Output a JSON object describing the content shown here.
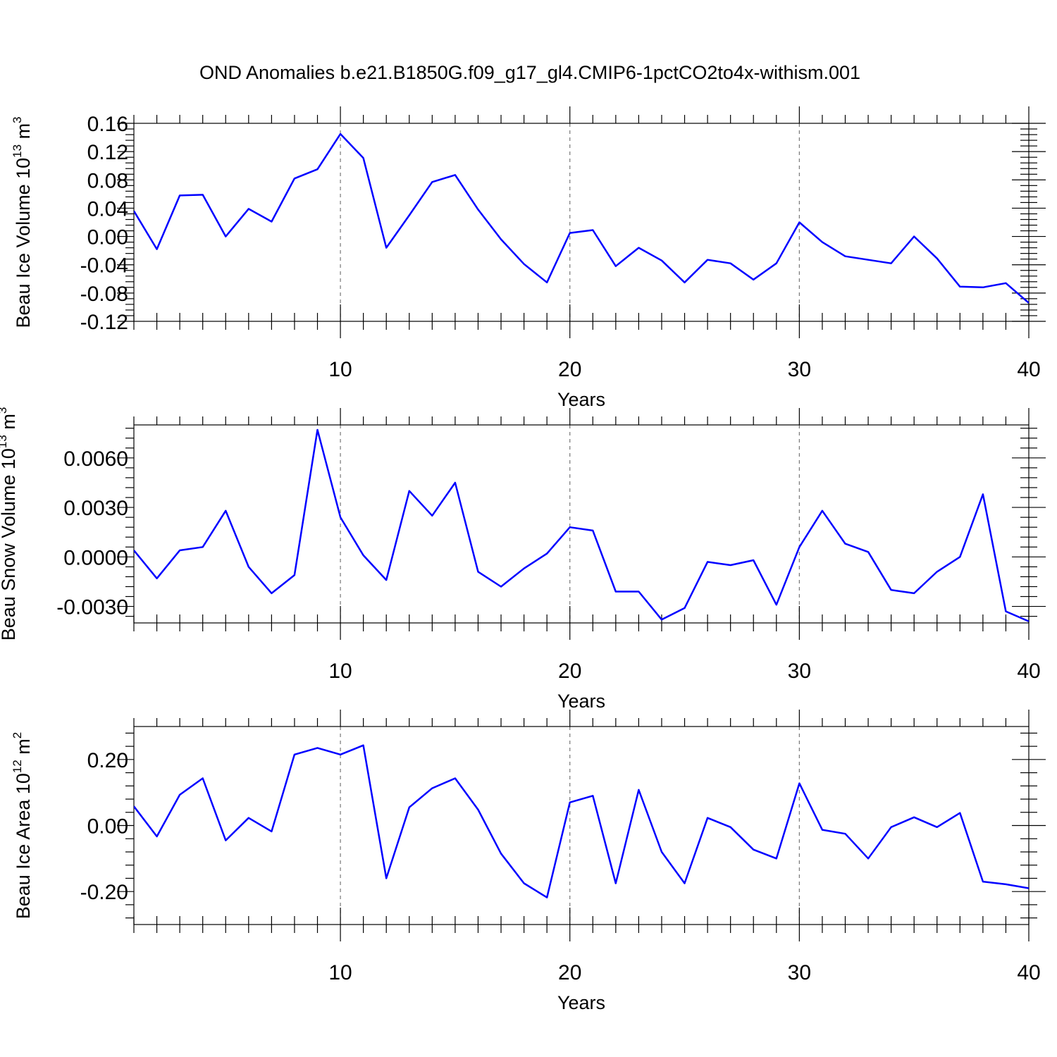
{
  "title": "OND Anomalies b.e21.B1850G.f09_g17_gl4.CMIP6-1pctCO2to4x-withism.001",
  "colors": {
    "series": "#0000ff",
    "grid": "#777777",
    "axis": "#000000"
  },
  "chart_data": [
    {
      "type": "line",
      "ylabel": {
        "main": "Beau Ice Volume 10",
        "sup": "13",
        "unit": " m",
        "unit_sup": "3"
      },
      "xlabel": "Years",
      "xlim": [
        1,
        40
      ],
      "ylim": [
        -0.12,
        0.16
      ],
      "xticks": [
        10,
        20,
        30,
        40
      ],
      "yticks": [
        -0.12,
        -0.08,
        -0.04,
        0.0,
        0.04,
        0.08,
        0.12,
        0.16
      ],
      "ytick_labels": [
        "-0.12",
        "-0.08",
        "-0.04",
        "0.00",
        "0.04",
        "0.08",
        "0.12",
        "0.16"
      ],
      "grid": "vertical dashed at major x ticks",
      "x": [
        1,
        2,
        3,
        4,
        5,
        6,
        7,
        8,
        9,
        10,
        11,
        12,
        13,
        14,
        15,
        16,
        17,
        18,
        19,
        20,
        21,
        22,
        23,
        24,
        25,
        26,
        27,
        28,
        29,
        30,
        31,
        32,
        33,
        34,
        35,
        36,
        37,
        38,
        39,
        40
      ],
      "values": [
        0.036,
        -0.018,
        0.058,
        0.059,
        0.0,
        0.039,
        0.021,
        0.082,
        0.095,
        0.145,
        0.111,
        -0.016,
        0.03,
        0.077,
        0.087,
        0.038,
        -0.004,
        -0.039,
        -0.065,
        0.005,
        0.009,
        -0.042,
        -0.016,
        -0.034,
        -0.065,
        -0.033,
        -0.038,
        -0.061,
        -0.038,
        0.02,
        -0.008,
        -0.028,
        -0.033,
        -0.038,
        0.0,
        -0.031,
        -0.071,
        -0.072,
        -0.066,
        -0.094
      ]
    },
    {
      "type": "line",
      "ylabel": {
        "main": "Beau Snow Volume 10",
        "sup": "13",
        "unit": " m",
        "unit_sup": "3"
      },
      "xlabel": "Years",
      "xlim": [
        1,
        40
      ],
      "ylim": [
        -0.004,
        0.008
      ],
      "xticks": [
        10,
        20,
        30,
        40
      ],
      "yticks": [
        -0.003,
        0.0,
        0.003,
        0.006
      ],
      "ytick_labels": [
        "-0.0030",
        "0.0000",
        "0.0030",
        "0.0060"
      ],
      "grid": "vertical dashed at major x ticks",
      "x": [
        1,
        2,
        3,
        4,
        5,
        6,
        7,
        8,
        9,
        10,
        11,
        12,
        13,
        14,
        15,
        16,
        17,
        18,
        19,
        20,
        21,
        22,
        23,
        24,
        25,
        26,
        27,
        28,
        29,
        30,
        31,
        32,
        33,
        34,
        35,
        36,
        37,
        38,
        39,
        40
      ],
      "values": [
        0.0004,
        -0.0013,
        0.0004,
        0.0006,
        0.0028,
        -0.0006,
        -0.0022,
        -0.0011,
        0.0077,
        0.0024,
        0.0001,
        -0.0014,
        0.004,
        0.0025,
        0.0045,
        -0.0009,
        -0.0018,
        -0.0007,
        0.0002,
        0.0018,
        0.0016,
        -0.0021,
        -0.0021,
        -0.0038,
        -0.0031,
        -0.0003,
        -0.0005,
        -0.0002,
        -0.0029,
        0.0006,
        0.0028,
        0.0008,
        0.0003,
        -0.002,
        -0.0022,
        -0.0009,
        0.0,
        0.0038,
        -0.0033,
        -0.0039
      ]
    },
    {
      "type": "line",
      "ylabel": {
        "main": "Beau Ice Area 10",
        "sup": "12",
        "unit": " m",
        "unit_sup": "2"
      },
      "xlabel": "Years",
      "xlim": [
        1,
        40
      ],
      "ylim": [
        -0.3,
        0.3
      ],
      "xticks": [
        10,
        20,
        30,
        40
      ],
      "yticks": [
        -0.2,
        0.0,
        0.2
      ],
      "ytick_labels": [
        "-0.20",
        "0.00",
        "0.20"
      ],
      "grid": "vertical dashed at major x ticks",
      "x": [
        1,
        2,
        3,
        4,
        5,
        6,
        7,
        8,
        9,
        10,
        11,
        12,
        13,
        14,
        15,
        16,
        17,
        18,
        19,
        20,
        21,
        22,
        23,
        24,
        25,
        26,
        27,
        28,
        29,
        30,
        31,
        32,
        33,
        34,
        35,
        36,
        37,
        38,
        39,
        40
      ],
      "values": [
        0.058,
        -0.033,
        0.093,
        0.143,
        -0.045,
        0.023,
        -0.018,
        0.215,
        0.235,
        0.215,
        0.243,
        -0.16,
        0.055,
        0.113,
        0.143,
        0.048,
        -0.085,
        -0.175,
        -0.218,
        0.07,
        0.09,
        -0.175,
        0.108,
        -0.08,
        -0.175,
        0.023,
        -0.005,
        -0.073,
        -0.1,
        0.128,
        -0.013,
        -0.025,
        -0.1,
        -0.005,
        0.025,
        -0.005,
        0.038,
        -0.17,
        -0.178,
        -0.19
      ]
    }
  ]
}
